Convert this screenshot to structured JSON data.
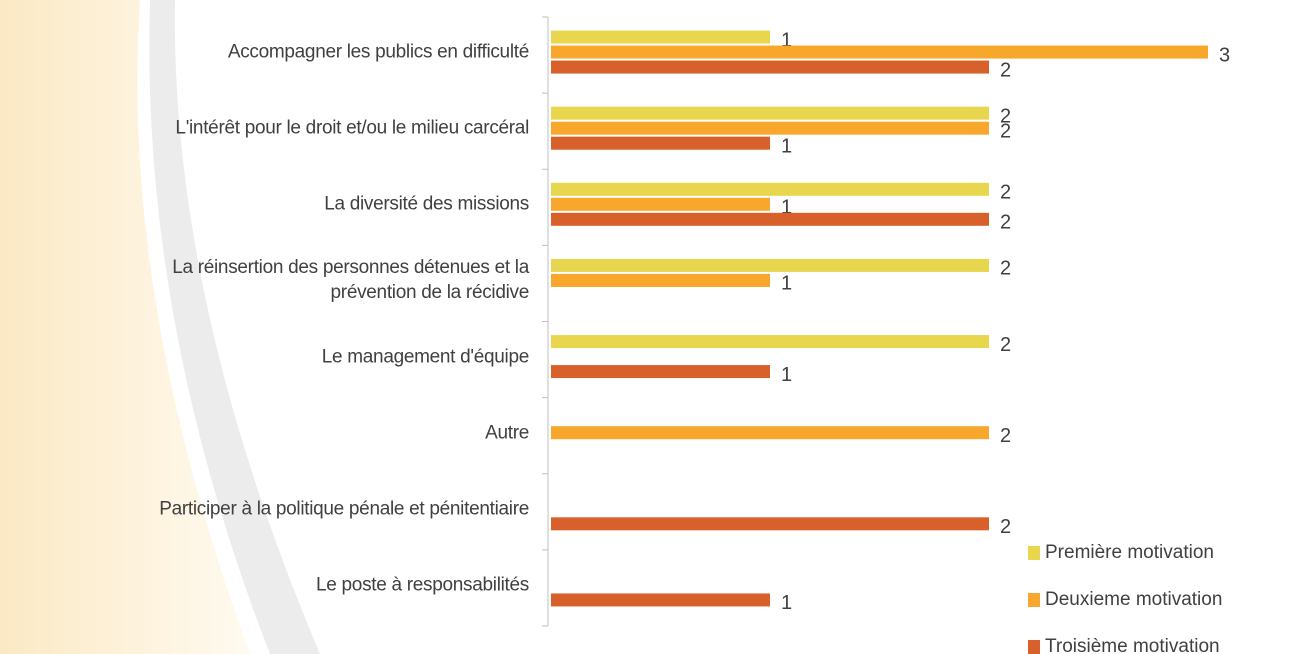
{
  "chart_data": {
    "type": "hbar",
    "categories": [
      "Accompagner les publics en difficulté",
      "L'intérêt pour le droit et/ou le milieu carcéral",
      "La diversité des missions",
      "La réinsertion des personnes détenues et la\nprévention de la récidive",
      "Le management d'équipe",
      "Autre",
      "Participer à la politique pénale et pénitentiaire",
      "Le poste à responsabilités"
    ],
    "series": [
      {
        "name": "Première motivation",
        "color": "#e9d64f",
        "values": [
          1,
          2,
          2,
          2,
          2,
          null,
          null,
          null
        ]
      },
      {
        "name": "Deuxieme motivation",
        "color": "#f6a72c",
        "values": [
          3,
          2,
          1,
          1,
          null,
          2,
          null,
          null
        ]
      },
      {
        "name": "Troisième motivation",
        "color": "#d8602a",
        "values": [
          2,
          1,
          2,
          null,
          1,
          null,
          2,
          1
        ]
      }
    ],
    "xlim": [
      0,
      3
    ],
    "legend": "bottom-right"
  }
}
